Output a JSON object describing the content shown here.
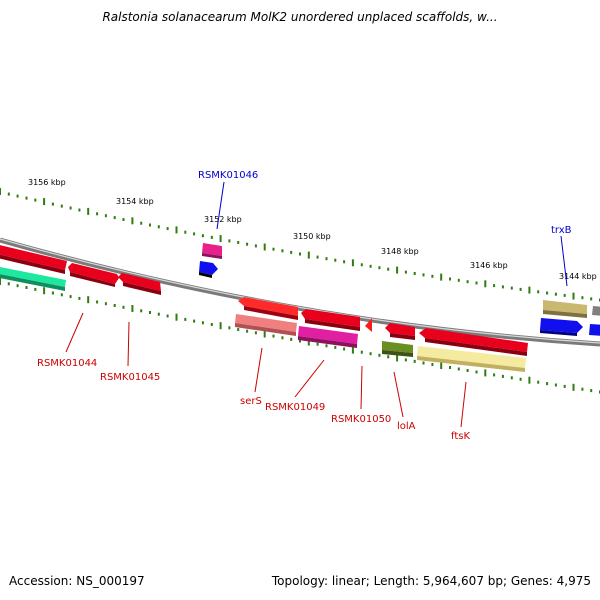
{
  "title": "Ralstonia solanacearum MolK2 unordered unplaced scaffolds, w...",
  "footer": {
    "accession": "Accession: NS_000197",
    "summary": "Topology: linear; Length: 5,964,607 bp; Genes: 4,975"
  },
  "scale_labels": [
    "3156 kbp",
    "3154 kbp",
    "3152 kbp",
    "3150 kbp",
    "3148 kbp",
    "3146 kbp",
    "3144 kbp"
  ],
  "genes": [
    {
      "label": "",
      "color": "#e8001c"
    },
    {
      "label": "",
      "color": "#1ee8a0"
    },
    {
      "label": "",
      "color": "#e8001c"
    },
    {
      "label": "RSMK01044",
      "color": "#cc0000"
    },
    {
      "label": "RSMK01045",
      "color": "#cc0000"
    },
    {
      "label": "RSMK01046",
      "color": "#0000cc"
    },
    {
      "label": "",
      "color": "#e8208c"
    },
    {
      "label": "",
      "color": "#1010ee"
    },
    {
      "label": "serS",
      "color": "#cc0000"
    },
    {
      "label": "",
      "color": "#ff2b2b"
    },
    {
      "label": "",
      "color": "#f08080"
    },
    {
      "label": "RSMK01049",
      "color": "#cc0000"
    },
    {
      "label": "",
      "color": "#e8001c"
    },
    {
      "label": "",
      "color": "#e020a0"
    },
    {
      "label": "RSMK01050",
      "color": "#cc0000"
    },
    {
      "label": "",
      "color": "#ff1a1a"
    },
    {
      "label": "lolA",
      "color": "#cc0000"
    },
    {
      "label": "",
      "color": "#e8001c"
    },
    {
      "label": "",
      "color": "#6b8e23"
    },
    {
      "label": "ftsK",
      "color": "#cc0000"
    },
    {
      "label": "",
      "color": "#e8001c"
    },
    {
      "label": "",
      "color": "#f5eba0"
    },
    {
      "label": "trxB",
      "color": "#0000cc"
    },
    {
      "label": "",
      "color": "#c8b870"
    },
    {
      "label": "",
      "color": "#1010ee"
    },
    {
      "label": "",
      "color": "#808080"
    },
    {
      "label": "",
      "color": "#1010ee"
    }
  ]
}
